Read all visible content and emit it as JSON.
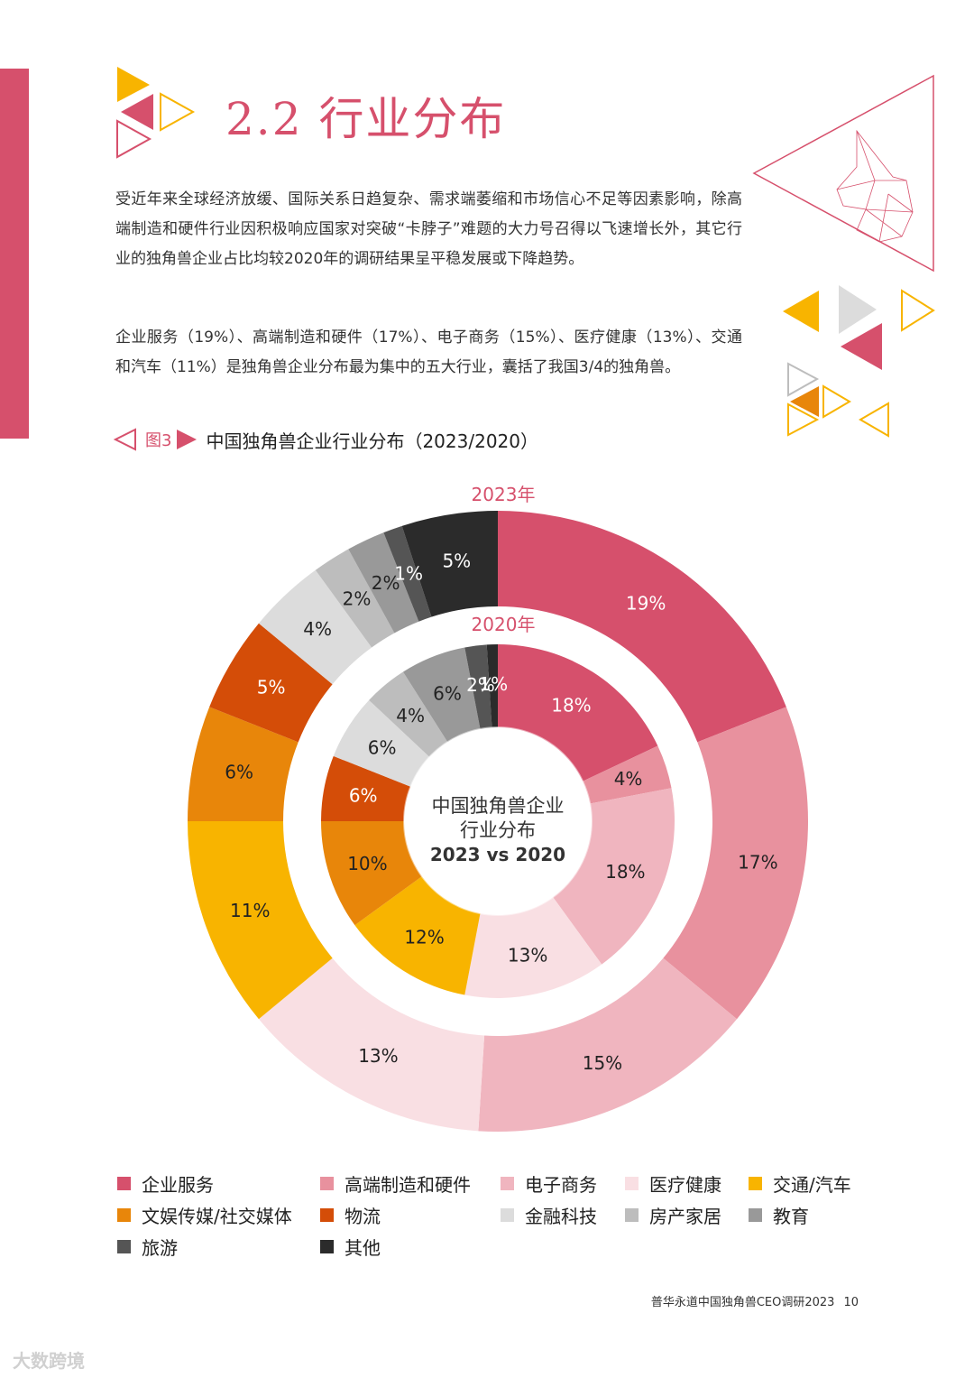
{
  "section": {
    "number": "2.2",
    "title": "行业分布"
  },
  "paragraphs": [
    "受近年来全球经济放缓、国际关系日趋复杂、需求端萎缩和市场信心不足等因素影响，除高端制造和硬件行业因积极响应国家对突破“卡脖子”难题的大力号召得以飞速增长外，其它行业的独角兽企业占比均较2020年的调研结果呈平稳发展或下降趋势。",
    "企业服务（19%）、高端制造和硬件（17%）、电子商务（15%）、医疗健康（13%）、交通和汽车（11%）是独角兽企业分布最为集中的五大行业，囊括了我国3/4的独角兽。"
  ],
  "figure": {
    "number": "图3",
    "title": "中国独角兽企业行业分布（2023/2020）"
  },
  "chart_data": {
    "type": "donut",
    "title": "中国独角兽企业行业分布（2023/2020）",
    "center_label_line1": "中国独角兽企业",
    "center_label_line2": "行业分布",
    "center_label_line3": "2023 vs 2020",
    "categories": [
      "企业服务",
      "高端制造和硬件",
      "电子商务",
      "医疗健康",
      "交通/汽车",
      "文娱传媒/社交媒体",
      "物流",
      "金融科技",
      "房产家居",
      "教育",
      "旅游",
      "其他"
    ],
    "colors": [
      "#d6506c",
      "#e8919e",
      "#f0b5bf",
      "#f9dfe3",
      "#f8b400",
      "#e8860a",
      "#d44d08",
      "#dcdcdc",
      "#bdbdbd",
      "#999999",
      "#555555",
      "#2b2b2b"
    ],
    "series": [
      {
        "name": "2023年",
        "values": [
          19,
          17,
          15,
          13,
          11,
          6,
          5,
          4,
          2,
          2,
          1,
          5
        ],
        "labels": [
          "19%",
          "17%",
          "15%",
          "13%",
          "11%",
          "6%",
          "5%",
          "4%",
          "2%",
          "2%",
          "1%",
          "5%"
        ]
      },
      {
        "name": "2020年",
        "values": [
          18,
          4,
          18,
          13,
          12,
          10,
          6,
          6,
          4,
          6,
          2,
          1
        ],
        "labels": [
          "18%",
          "4%",
          "18%",
          "13%",
          "12%",
          "10%",
          "6%",
          "6%",
          "4%",
          "6%",
          "2%",
          "1%"
        ]
      }
    ]
  },
  "footer": {
    "text": "普华永道中国独角兽CEO调研2023",
    "page": "10"
  },
  "watermark": "大数跨境"
}
